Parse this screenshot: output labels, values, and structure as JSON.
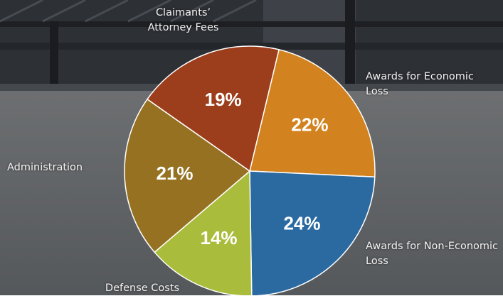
{
  "chart_data": {
    "type": "pie",
    "categories": [
      "Awards for Economic Loss",
      "Awards for Non-Economic Loss",
      "Defense Costs",
      "Administration",
      "Claimants’ Attorney Fees"
    ],
    "values": [
      22,
      24,
      14,
      21,
      19
    ],
    "value_labels": [
      "22%",
      "24%",
      "14%",
      "21%",
      "19%"
    ],
    "colors": [
      "#d2831f",
      "#2b6aa1",
      "#a9bc3b",
      "#957121",
      "#9c3d1b"
    ]
  }
}
